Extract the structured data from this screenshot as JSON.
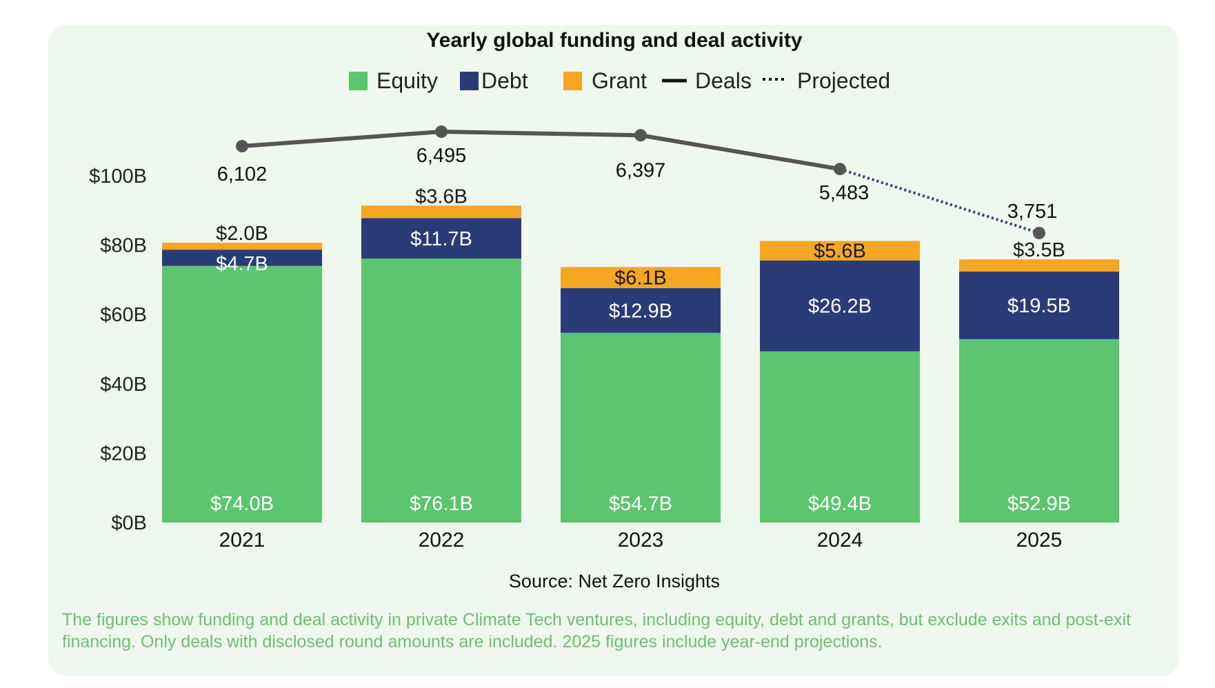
{
  "chart_data": {
    "type": "bar",
    "stacked": true,
    "title": "Yearly global funding and deal activity",
    "categories": [
      "2021",
      "2022",
      "2023",
      "2024",
      "2025"
    ],
    "series": [
      {
        "name": "Equity",
        "values": [
          74.0,
          76.1,
          54.7,
          49.4,
          52.9
        ],
        "labels": [
          "$74.0B",
          "$76.1B",
          "$54.7B",
          "$49.4B",
          "$52.9B"
        ]
      },
      {
        "name": "Debt",
        "values": [
          4.7,
          11.7,
          12.9,
          26.2,
          19.5
        ],
        "labels": [
          "$4.7B",
          "$11.7B",
          "$12.9B",
          "$26.2B",
          "$19.5B"
        ]
      },
      {
        "name": "Grant",
        "values": [
          2.0,
          3.6,
          6.1,
          5.6,
          3.5
        ],
        "labels": [
          "$2.0B",
          "$3.6B",
          "$6.1B",
          "$5.6B",
          "$3.5B"
        ]
      }
    ],
    "deals": {
      "name": "Deals",
      "values": [
        6102,
        6495,
        6397,
        5483,
        3751
      ],
      "labels": [
        "6,102",
        "6,495",
        "6,397",
        "5,483",
        "3,751"
      ],
      "projected_from_index": 3
    },
    "projected_label": "Projected",
    "y_ticks": [
      "$0B",
      "$20B",
      "$40B",
      "$60B",
      "$80B",
      "$100B"
    ],
    "ylim": [
      0,
      100
    ],
    "legend_position": "top-center",
    "grid": false,
    "source": "Source: Net Zero Insights"
  },
  "caption": "The figures show funding and deal activity in private Climate Tech ventures, including equity, debt and grants, but exclude exits and post-exit financing. Only deals with disclosed round amounts are included. 2025 figures include year-end projections.",
  "colors": {
    "equity": "#5DC470",
    "debt": "#2A3C78",
    "grant": "#F5A623",
    "deals_line": "#555555",
    "projected_line": "#2F3E75",
    "card_bg": "#EFF8EE",
    "caption_text": "#6CC06E",
    "text": "#222222"
  }
}
